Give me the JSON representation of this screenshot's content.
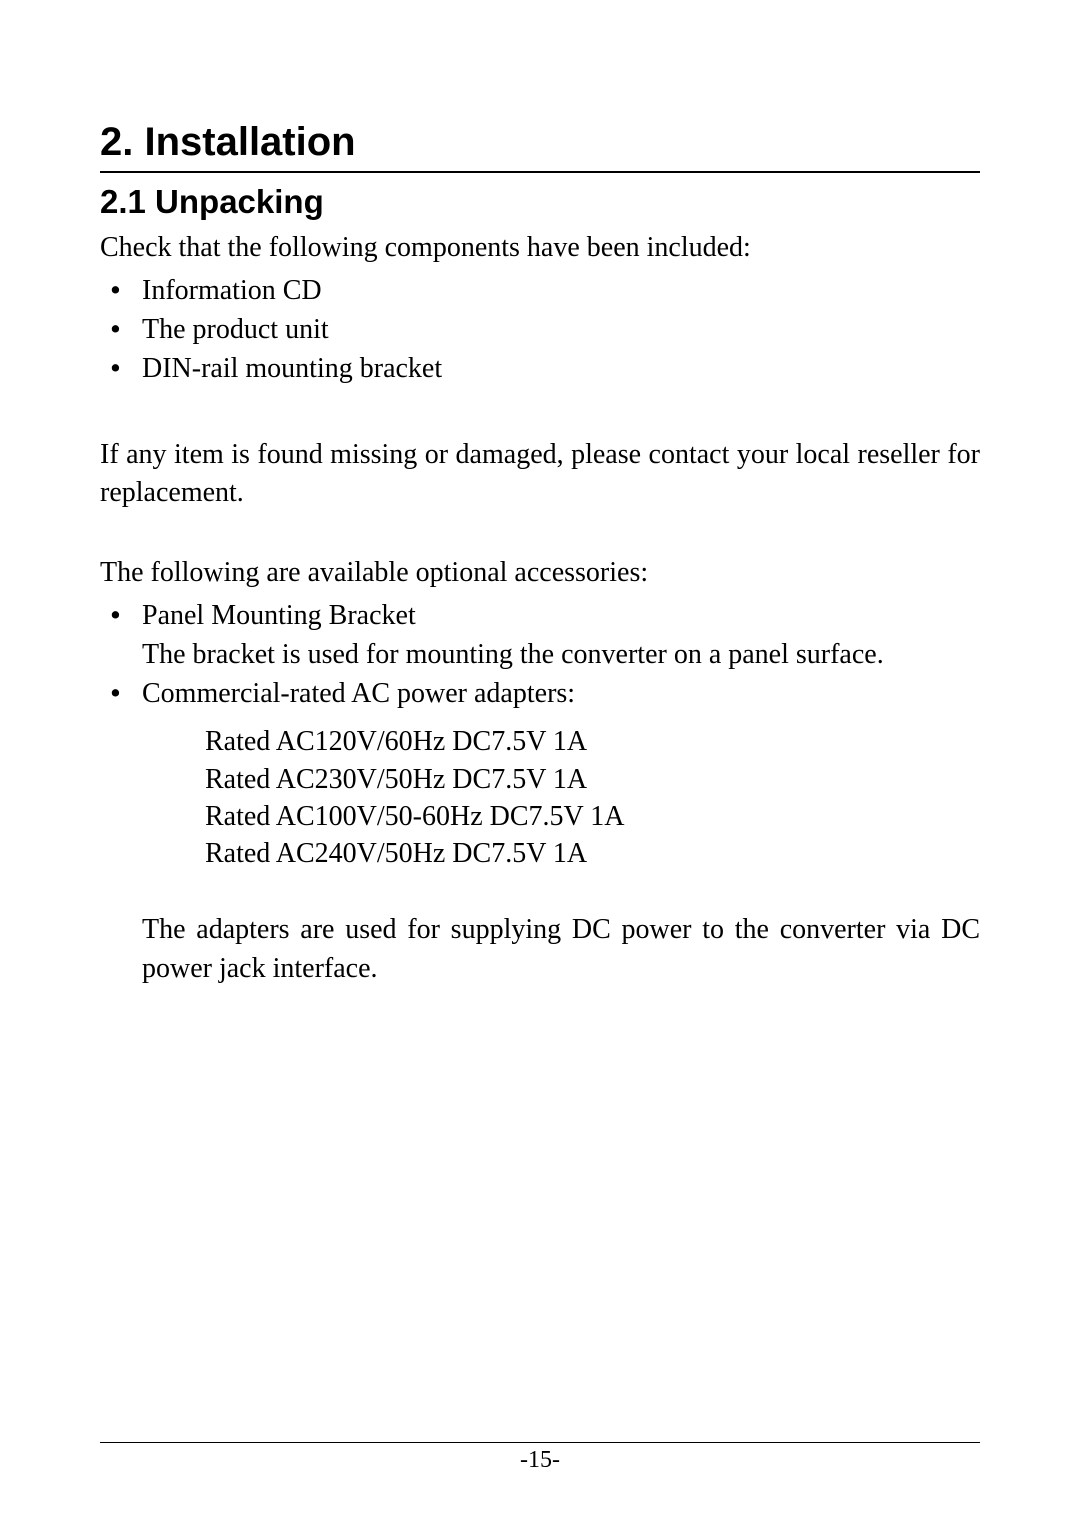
{
  "heading1": "2. Installation",
  "heading2": "2.1 Unpacking",
  "intro": "Check that the following components have been included:",
  "components": {
    "item1": "Information CD",
    "item2": "The product unit",
    "item3": "DIN-rail mounting bracket"
  },
  "missing_note": "If any item is found missing or damaged, please contact your local reseller for replacement.",
  "accessories_intro": "The following are available optional accessories:",
  "accessory1": {
    "title": "Panel Mounting Bracket",
    "desc": "The bracket is used for mounting the converter on a panel surface."
  },
  "accessory2": {
    "title": "Commercial-rated AC power adapters:",
    "adapter1": "Rated AC120V/60Hz DC7.5V 1A",
    "adapter2": "Rated AC230V/50Hz DC7.5V 1A",
    "adapter3": "Rated AC100V/50-60Hz DC7.5V 1A",
    "adapter4": "Rated AC240V/50Hz DC7.5V 1A",
    "desc": "The adapters are used for supplying DC power to the converter via DC power jack interface."
  },
  "page_number": "-15-"
}
